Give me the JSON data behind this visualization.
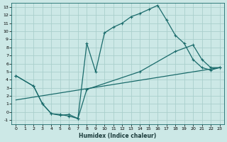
{
  "xlabel": "Humidex (Indice chaleur)",
  "bg_color": "#cce8e6",
  "grid_color": "#aacfcc",
  "line_color": "#1a6b6b",
  "xlim": [
    -0.5,
    23.5
  ],
  "ylim": [
    -1.5,
    13.5
  ],
  "xticks": [
    0,
    1,
    2,
    3,
    4,
    5,
    6,
    7,
    8,
    9,
    10,
    11,
    12,
    13,
    14,
    15,
    16,
    17,
    18,
    19,
    20,
    21,
    22,
    23
  ],
  "yticks": [
    -1,
    0,
    1,
    2,
    3,
    4,
    5,
    6,
    7,
    8,
    9,
    10,
    11,
    12,
    13
  ],
  "line1_x": [
    0,
    2,
    3,
    4,
    5,
    6,
    7,
    8,
    9,
    10,
    11,
    12,
    13,
    14,
    15,
    16,
    17,
    18,
    19,
    20,
    21,
    22,
    23
  ],
  "line1_y": [
    4.5,
    3.2,
    1.0,
    -0.2,
    -0.3,
    -0.5,
    -0.8,
    8.5,
    5.0,
    9.8,
    10.5,
    11.0,
    11.8,
    12.2,
    12.7,
    13.2,
    11.4,
    9.5,
    8.5,
    6.5,
    5.5,
    5.2,
    5.5
  ],
  "line2_x": [
    0,
    2,
    3,
    4,
    5,
    6,
    7,
    8,
    14,
    18,
    20,
    21,
    22,
    23
  ],
  "line2_y": [
    4.5,
    3.2,
    1.0,
    -0.2,
    -0.4,
    -0.3,
    -0.8,
    2.8,
    5.0,
    7.5,
    8.3,
    6.5,
    5.5,
    5.5
  ],
  "line3_x": [
    0,
    23
  ],
  "line3_y": [
    1.5,
    5.5
  ]
}
